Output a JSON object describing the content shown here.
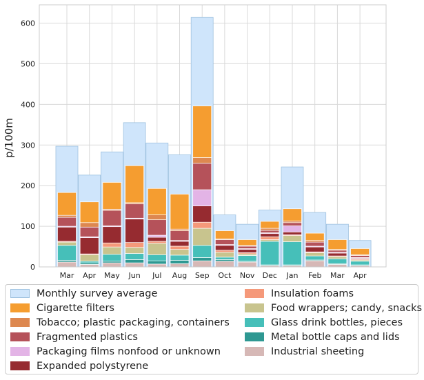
{
  "chart_data": {
    "type": "bar",
    "title": "",
    "xlabel": "",
    "ylabel": "p/100m",
    "ylim": [
      0,
      645
    ],
    "yticks": [
      0,
      100,
      200,
      300,
      400,
      500,
      600
    ],
    "grid": true,
    "legend_position": "bottom",
    "categories": [
      "Mar",
      "Apr",
      "May",
      "Jun",
      "Jul",
      "Aug",
      "Sep",
      "Oct",
      "Nov",
      "Dec",
      "Jan",
      "Feb",
      "Mar",
      "Apr"
    ],
    "average": {
      "name": "Monthly survey average",
      "color": "#cfe5fb",
      "values": [
        297,
        226,
        283,
        355,
        305,
        276,
        614,
        128,
        105,
        140,
        246,
        134,
        105,
        65
      ]
    },
    "series": [
      {
        "name": "Industrial sheeting",
        "color": "#d6b8b6",
        "values": [
          12,
          6,
          10,
          10,
          7,
          8,
          15,
          14,
          12,
          3,
          3,
          15,
          6,
          3
        ]
      },
      {
        "name": "Metal bottle caps and lids",
        "color": "#2e9892",
        "values": [
          4,
          4,
          4,
          8,
          8,
          8,
          8,
          4,
          2,
          2,
          2,
          2,
          2,
          2
        ]
      },
      {
        "name": "Glass drink bottles, pieces",
        "color": "#46bfb9",
        "values": [
          37,
          4,
          17,
          15,
          15,
          13,
          30,
          6,
          14,
          58,
          57,
          10,
          12,
          9
        ]
      },
      {
        "name": "Food wrappers; candy, snacks",
        "color": "#c8c48e",
        "values": [
          8,
          16,
          18,
          15,
          28,
          14,
          42,
          12,
          4,
          4,
          15,
          8,
          5,
          3
        ]
      },
      {
        "name": "Insulation foams",
        "color": "#f5997a",
        "values": [
          2,
          2,
          10,
          12,
          5,
          8,
          15,
          5,
          3,
          7,
          2,
          2,
          2,
          2
        ]
      },
      {
        "name": "Expanded polystyrene",
        "color": "#962b30",
        "values": [
          35,
          40,
          40,
          58,
          10,
          12,
          40,
          12,
          8,
          8,
          7,
          12,
          7,
          2
        ]
      },
      {
        "name": "Packaging films nonfood or unknown",
        "color": "#e3b4e6",
        "values": [
          2,
          2,
          2,
          2,
          5,
          2,
          40,
          2,
          2,
          2,
          15,
          2,
          2,
          2
        ]
      },
      {
        "name": "Fragmented plastics",
        "color": "#b5525a",
        "values": [
          22,
          24,
          38,
          35,
          38,
          24,
          65,
          12,
          6,
          6,
          8,
          10,
          5,
          5
        ]
      },
      {
        "name": "Tobacco; plastic packaging, containers",
        "color": "#dd8850",
        "values": [
          5,
          11,
          3,
          3,
          12,
          4,
          14,
          2,
          2,
          5,
          4,
          4,
          2,
          2
        ]
      },
      {
        "name": "Cigarette filters",
        "color": "#f59d30",
        "values": [
          56,
          51,
          66,
          91,
          65,
          86,
          127,
          20,
          14,
          17,
          30,
          18,
          24,
          15
        ]
      }
    ]
  }
}
